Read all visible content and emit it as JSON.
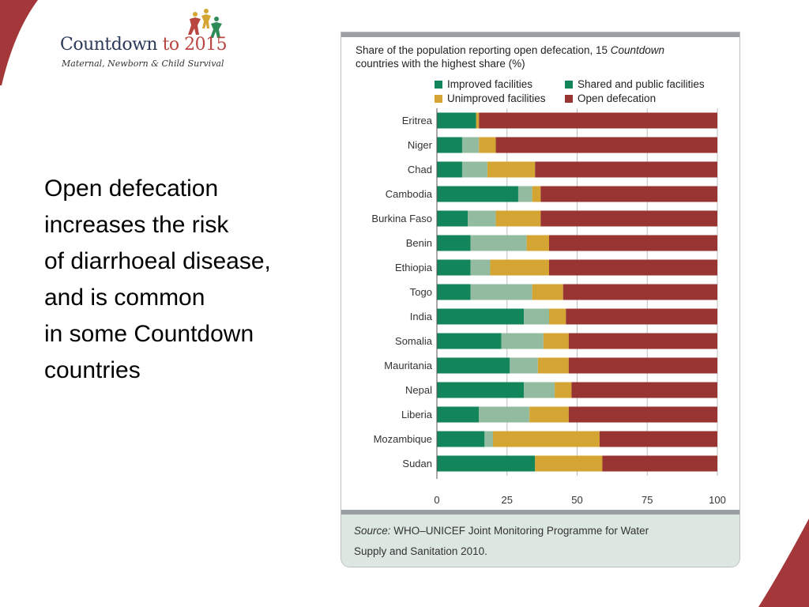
{
  "logo": {
    "title_main": "Countdown ",
    "title_accent": "to 2015",
    "subtitle": "Maternal, Newborn & Child Survival"
  },
  "headline": {
    "lines": [
      "Open defecation",
      "increases the risk",
      "of diarrhoeal disease,",
      "and is common",
      "in some Countdown",
      "countries"
    ]
  },
  "colors": {
    "improved": "#12855a",
    "shared": "#93bba0",
    "unimproved": "#d4a532",
    "open": "#983532",
    "slide_accent": "#a3373a"
  },
  "chart_data": {
    "type": "bar",
    "orientation": "horizontal",
    "stacked": true,
    "title_part1": "Share of the population reporting open defecation, 15 ",
    "title_italic": "Countdown",
    "title_part2": "countries with the highest share (%)",
    "categories": [
      "Eritrea",
      "Niger",
      "Chad",
      "Cambodia",
      "Burkina Faso",
      "Benin",
      "Ethiopia",
      "Togo",
      "India",
      "Somalia",
      "Mauritania",
      "Nepal",
      "Liberia",
      "Mozambique",
      "Sudan"
    ],
    "series": [
      {
        "name": "Improved facilities",
        "color": "#12855a",
        "values": [
          14,
          9,
          9,
          29,
          11,
          12,
          12,
          12,
          31,
          23,
          26,
          31,
          15,
          17,
          35
        ]
      },
      {
        "name": "Shared and public facilities",
        "color": "#93bba0",
        "values": [
          0,
          6,
          9,
          5,
          10,
          20,
          7,
          22,
          9,
          15,
          10,
          11,
          18,
          3,
          0
        ]
      },
      {
        "name": "Unimproved facilities",
        "color": "#d4a532",
        "values": [
          1,
          6,
          17,
          3,
          16,
          8,
          21,
          11,
          6,
          9,
          11,
          6,
          14,
          38,
          24
        ]
      },
      {
        "name": "Open defecation",
        "color": "#983532",
        "values": [
          85,
          79,
          65,
          63,
          63,
          60,
          60,
          55,
          54,
          53,
          53,
          52,
          53,
          42,
          41
        ]
      }
    ],
    "xlim": [
      0,
      100
    ],
    "xticks": [
      "0",
      "25",
      "50",
      "75",
      "100"
    ],
    "grid": "vertical",
    "legend_position": "top"
  },
  "source": {
    "label": "Source:",
    "text_line1": " WHO–UNICEF Joint Monitoring Programme for Water",
    "text_line2": "Supply and Sanitation 2010."
  }
}
